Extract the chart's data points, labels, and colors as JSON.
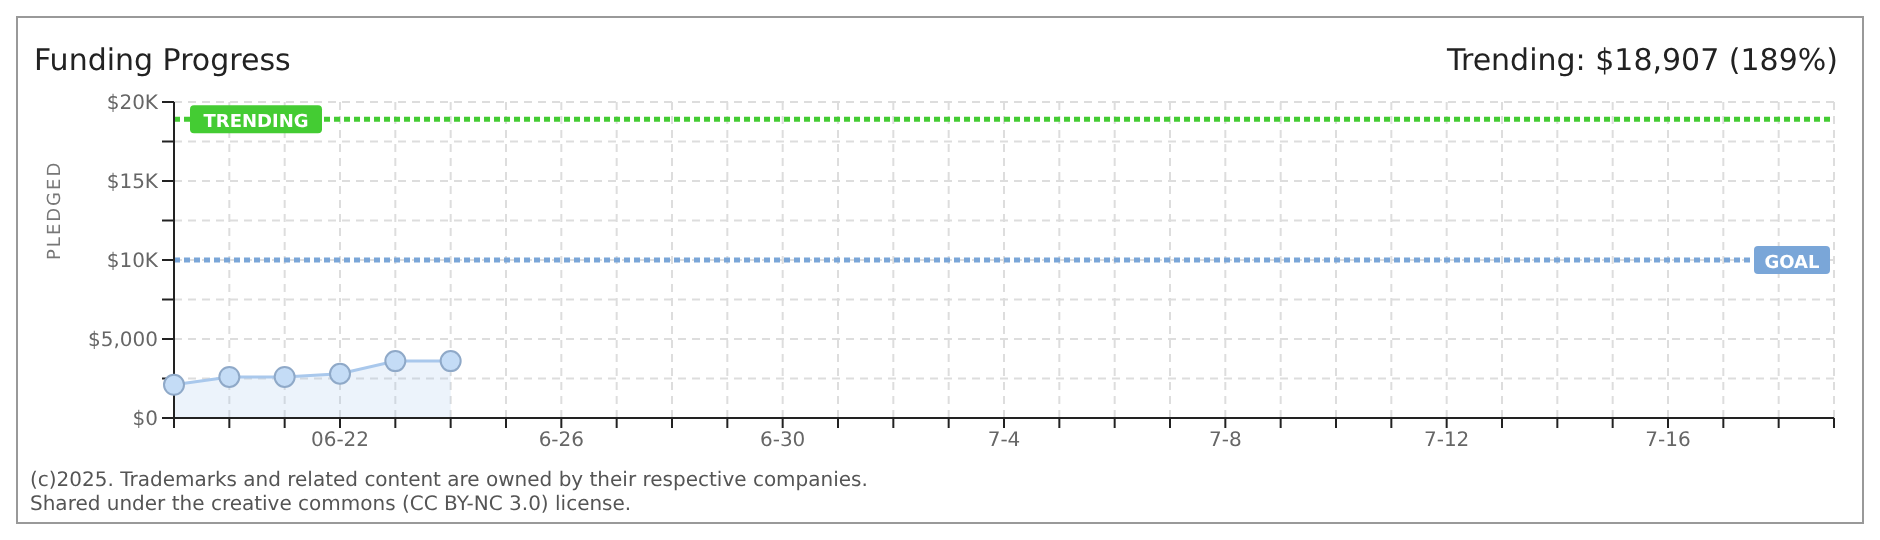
{
  "chart_data": {
    "type": "area",
    "title": "Funding Progress",
    "ylabel": "PLEDGED",
    "annotations": [
      "Trending:  $18,907 (189%)",
      "(c)2025. Trademarks and related content are owned by their respective companies.",
      "Shared under the creative commons (CC BY-NC 3.0) license."
    ],
    "categories": [
      null,
      null,
      null,
      "06-22",
      null,
      null,
      null,
      "6-26",
      null,
      null,
      null,
      "6-30",
      null,
      null,
      null,
      "7-4",
      null,
      null,
      null,
      "7-8",
      null,
      null,
      null,
      "7-12",
      null,
      null,
      null,
      "7-16",
      null,
      null,
      null
    ],
    "series": [
      {
        "color": "#a9c8ec",
        "values": [
          2100,
          2600,
          2600,
          2800,
          3600,
          3600,
          null,
          null,
          null,
          null,
          null,
          null,
          null,
          null,
          null,
          null,
          null,
          null,
          null,
          null,
          null,
          null,
          null,
          null,
          null,
          null,
          null,
          null,
          null,
          null,
          null
        ]
      }
    ],
    "ylim": [
      0,
      20000
    ],
    "yticks": [
      {
        "value": 0,
        "label": "$0"
      },
      {
        "value": 2500,
        "label": null
      },
      {
        "value": 5000,
        "label": "$5,000"
      },
      {
        "value": 7500,
        "label": null
      },
      {
        "value": 10000,
        "label": "$10K"
      },
      {
        "value": 12500,
        "label": null
      },
      {
        "value": 15000,
        "label": "$15K"
      },
      {
        "value": 17500,
        "label": null
      },
      {
        "value": 20000,
        "label": "$20K"
      }
    ],
    "ref_lines": [
      {
        "axis": "y",
        "value": 18907,
        "label": "TRENDING",
        "color": "#44cc33",
        "line_style": "dotted"
      },
      {
        "axis": "y",
        "value": 10000,
        "label": "GOAL",
        "color": "#7aa6d8",
        "line_style": "dotted"
      }
    ],
    "grid": true,
    "marker": "circle"
  }
}
